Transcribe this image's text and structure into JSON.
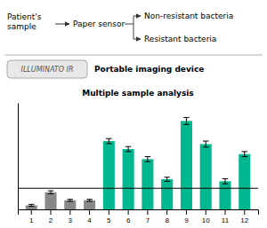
{
  "chart_data": {
    "type": "bar",
    "title": "Multiple sample analysis",
    "categories": [
      1,
      2,
      3,
      4,
      5,
      6,
      7,
      8,
      9,
      10,
      11,
      12
    ],
    "values": [
      0.04,
      0.17,
      0.09,
      0.09,
      0.68,
      0.6,
      0.5,
      0.3,
      0.88,
      0.65,
      0.28,
      0.55
    ],
    "errors": [
      0.01,
      0.015,
      0.01,
      0.01,
      0.025,
      0.025,
      0.025,
      0.02,
      0.035,
      0.03,
      0.025,
      0.025
    ],
    "colors": [
      "#888888",
      "#888888",
      "#888888",
      "#888888",
      "#00b890",
      "#00b890",
      "#00b890",
      "#00b890",
      "#00b890",
      "#00b890",
      "#00b890",
      "#00b890"
    ],
    "threshold": 0.21,
    "ylim": [
      0,
      1.06
    ],
    "yticks": [],
    "tick_labels": "x",
    "grid": false,
    "annotations": [
      "Patient's\nsample",
      "Paper sensor",
      "Non-resistant bacteria",
      "Resistant bacteria",
      "Portable imaging device",
      "ILLUMINATO IR"
    ]
  }
}
